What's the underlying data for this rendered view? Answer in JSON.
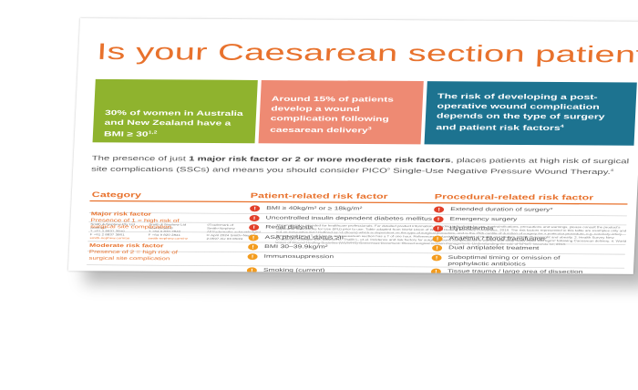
{
  "title": "Is your Caesarean section patient at risk?",
  "stats": {
    "green": "30% of women in Australia and New Zealand have a BMI ≥ 30",
    "green_sup": "1,2",
    "salmon": "Around 15% of patients develop a wound complication following caesarean delivery",
    "salmon_sup": "3",
    "teal": "The risk of developing a post-operative wound complication depends on the type of surgery and patient risk factors",
    "teal_sup": "4"
  },
  "intro": {
    "lead": "The presence of just ",
    "bold": "1 major risk factor or 2 or more moderate risk factors",
    "rest": ", places patients at high risk of surgical site complications (SSCs) and means you should consider PICO",
    "trademark": "◊",
    "tail": " Single-Use Negative Pressure Wound Therapy.",
    "tail_sup": "4"
  },
  "table": {
    "headers": [
      "Category",
      "Patient-related risk factor",
      "Procedural-related risk factor"
    ],
    "major": {
      "title": "Major risk factor",
      "subtitle": "Presence of 1 = high risk of surgical site complication",
      "mark": "!",
      "patient": [
        "BMI ≥ 40kg/m² or ≥ 18kg/m²",
        "Uncontrolled insulin dependent diabetes mellitus",
        "Renal dialysis"
      ],
      "procedural": [
        "Extended duration of surgery*",
        "Emergency surgery",
        "Hypothermia"
      ]
    },
    "moderate": {
      "title": "Moderate risk factor",
      "subtitle": "Presence of 2 = high risk of surgical site complication",
      "mark": "!",
      "patient": [
        "ASA physical status ≥II",
        "BMI 30–39.9kg/m²",
        "Immunosuppression",
        "Smoking (current)"
      ],
      "procedural": [
        "Anaemia / blood transfusion",
        "Dual antiplatelet treatment",
        "Suboptimal timing or omission of prophylactic antibiotics",
        "Tissue trauma / large area of dissection / large area of undermining"
      ]
    }
  },
  "footer": {
    "col1": [
      "Smith & Nephew Pty Ltd",
      "Australia",
      "T +61 2 8837 3840",
      "F +61 2 8837 3861",
      "smith-nephew.com/au"
    ],
    "col2": [
      "Smith & Nephew Ltd",
      "New Zealand",
      "T +64 9 820 2840",
      "F +64 9 820 2841",
      "smith-nephew.com/nz"
    ],
    "col3": [
      "◊Trademark of Smith+Nephew",
      "All trademarks acknowledged",
      "© April 2024 Smith+Nephew",
      "2.0597 AU 03 06/24"
    ],
    "disclaimer": "This material is intended for healthcare professionals. For detailed product information, including indications for use, contraindications, precautions and warnings, please consult the product's applicable Instructions for Use (IFU) prior to use. Table adapted from World Union of Wound Healing Societies Consensus, 2016. The risk factors represented in this table are examples only and not an exhaustive list.* Defined as >1 (hours) which is dependent on the type of surgical procedure, and is the 75th centile of duration of surgery for a particular procedure, e.g. coronary artery bypass graft has a T of 5 hours and caesarean section has a T of one hour. References: 1. Australian Institute of Health and Welfare (2023) Overweight and obesity. 2. Health Survey New Zealand. 3. Gillespie BM, Ellwood D, Thalib L, et al. Incidence and risk factors for surgical wound complications in women with body mass index ≥30 kg/m² following Caesarean delivery. 4. World Union of Wound Healing Societies (WUWHS) Consensus Document. Closed surgical incision management: Understanding the role of NPWT. Wounds Int; 2016."
  },
  "colors": {
    "orange": "#e8722d",
    "green": "#8fb32e",
    "salmon": "#ee8a73",
    "teal": "#1d7390",
    "red_dot": "#e2402b",
    "orange_dot": "#f39c1f"
  }
}
